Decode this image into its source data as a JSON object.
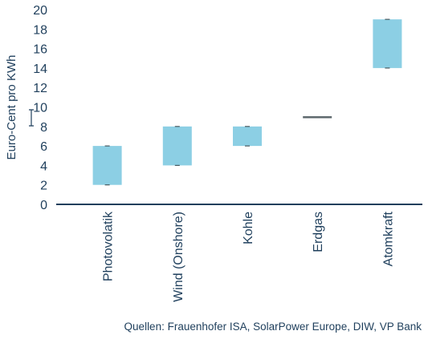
{
  "chart_data": {
    "type": "bar",
    "subtype": "floating-range",
    "categories": [
      "Photovolatik",
      "Wind (Onshore)",
      "Kohle",
      "Erdgas",
      "Atomkraft"
    ],
    "ranges": [
      [
        2,
        6
      ],
      [
        4,
        8
      ],
      [
        6,
        8
      ],
      [
        8.9,
        9.0
      ],
      [
        14,
        19
      ]
    ],
    "ylabel": "Euro-Cent pro KWh",
    "xlabel": "",
    "ylim": [
      0,
      20
    ],
    "yticks": [
      0,
      2,
      4,
      6,
      8,
      10,
      12,
      14,
      16,
      18,
      20
    ],
    "grid": false,
    "colors": {
      "bar": "#8ccfe4",
      "special": "#5f6a6e",
      "axis": "#1f3f5c",
      "text": "#1f3f5c"
    }
  },
  "source_note": "Quellen: Frauenhofer ISA, SolarPower Europe, DIW, VP Bank"
}
